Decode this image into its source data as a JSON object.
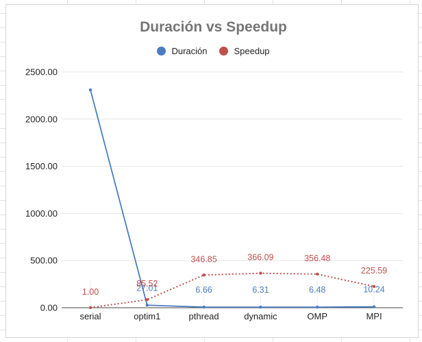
{
  "chart_data": {
    "type": "line",
    "title": "Duración vs Speedup",
    "categories": [
      "serial",
      "optim1",
      "pthread",
      "dynamic",
      "OMP",
      "MPI"
    ],
    "ylim": [
      0,
      2500
    ],
    "yticks": [
      "0.00",
      "500.00",
      "1000.00",
      "1500.00",
      "2000.00",
      "2500.00"
    ],
    "legend_position": "top",
    "series": [
      {
        "name": "Duración",
        "color": "#4a7dc0",
        "line_style": "solid",
        "values": [
          2310.0,
          27.01,
          6.66,
          6.31,
          6.48,
          10.24
        ],
        "labels": [
          "",
          "27.01",
          "6.66",
          "6.31",
          "6.48",
          "10.24"
        ]
      },
      {
        "name": "Speedup",
        "color": "#c0504d",
        "line_style": "dotted",
        "values": [
          1.0,
          85.52,
          346.85,
          366.09,
          356.48,
          225.59
        ],
        "labels": [
          "1.00",
          "85.52",
          "346.85",
          "366.09",
          "356.48",
          "225.59"
        ]
      }
    ]
  }
}
